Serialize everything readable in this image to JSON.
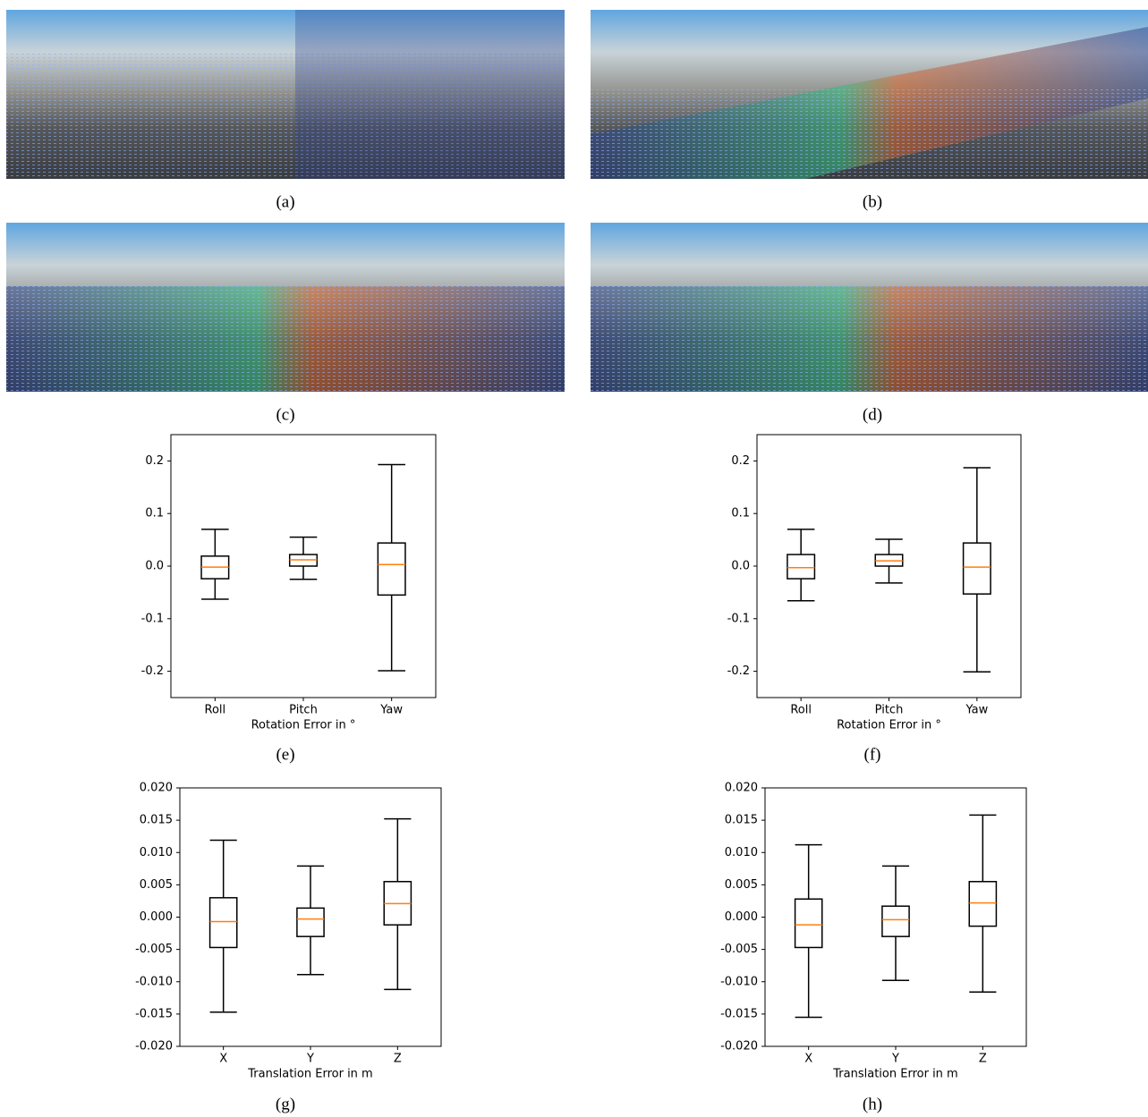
{
  "captions": [
    "(a)",
    "(b)",
    "(c)",
    "(d)",
    "(e)",
    "(f)",
    "(g)",
    "(h)"
  ],
  "chart_data": [
    {
      "type": "box",
      "xlabel": "Rotation Error in °",
      "categories": [
        "Roll",
        "Pitch",
        "Yaw"
      ],
      "whisker_low": [
        -0.063,
        -0.025,
        -0.199
      ],
      "q1": [
        -0.024,
        0.0,
        -0.055
      ],
      "median": [
        -0.002,
        0.012,
        0.003
      ],
      "q3": [
        0.019,
        0.022,
        0.044
      ],
      "whisker_high": [
        0.07,
        0.055,
        0.193
      ],
      "ylim": [
        -0.25,
        0.25
      ],
      "yticks": [
        -0.2,
        -0.1,
        {
          "value": 0,
          "label": "0.0"
        },
        0.1,
        0.2
      ],
      "box_color": "#000000",
      "median_color": "#ff7f0e"
    },
    {
      "type": "box",
      "xlabel": "Rotation Error in °",
      "categories": [
        "Roll",
        "Pitch",
        "Yaw"
      ],
      "whisker_low": [
        -0.066,
        -0.032,
        -0.201
      ],
      "q1": [
        -0.024,
        0.0,
        -0.053
      ],
      "median": [
        -0.003,
        0.01,
        -0.002
      ],
      "q3": [
        0.022,
        0.022,
        0.044
      ],
      "whisker_high": [
        0.07,
        0.051,
        0.187
      ],
      "ylim": [
        -0.25,
        0.25
      ],
      "yticks": [
        -0.2,
        -0.1,
        {
          "value": 0,
          "label": "0.0"
        },
        0.1,
        0.2
      ],
      "box_color": "#000000",
      "median_color": "#ff7f0e"
    },
    {
      "type": "box",
      "xlabel": "Translation Error in m",
      "categories": [
        "X",
        "Y",
        "Z"
      ],
      "whisker_low": [
        -0.0147,
        -0.0089,
        -0.0112
      ],
      "q1": [
        -0.0047,
        -0.003,
        -0.0012
      ],
      "median": [
        -0.0007,
        -0.0003,
        0.0021
      ],
      "q3": [
        0.003,
        0.0014,
        0.0055
      ],
      "whisker_high": [
        0.0119,
        0.0079,
        0.0152
      ],
      "ylim": [
        -0.02,
        0.02
      ],
      "yticks": [
        {
          "value": -0.02,
          "label": "-0.020"
        },
        {
          "value": -0.015,
          "label": "-0.015"
        },
        {
          "value": -0.01,
          "label": "-0.010"
        },
        -0.005,
        {
          "value": 0,
          "label": "0.000"
        },
        0.005,
        {
          "value": 0.01,
          "label": "0.010"
        },
        {
          "value": 0.015,
          "label": "0.015"
        },
        {
          "value": 0.02,
          "label": "0.020"
        }
      ],
      "box_color": "#000000",
      "median_color": "#ff7f0e"
    },
    {
      "type": "box",
      "xlabel": "Translation Error in m",
      "categories": [
        "X",
        "Y",
        "Z"
      ],
      "whisker_low": [
        -0.0155,
        -0.0098,
        -0.0116
      ],
      "q1": [
        -0.0047,
        -0.003,
        -0.0014
      ],
      "median": [
        -0.0012,
        -0.0004,
        0.0022
      ],
      "q3": [
        0.0028,
        0.0017,
        0.0055
      ],
      "whisker_high": [
        0.0112,
        0.0079,
        0.0158
      ],
      "ylim": [
        -0.02,
        0.02
      ],
      "yticks": [
        {
          "value": -0.02,
          "label": "-0.020"
        },
        {
          "value": -0.015,
          "label": "-0.015"
        },
        {
          "value": -0.01,
          "label": "-0.010"
        },
        -0.005,
        {
          "value": 0,
          "label": "0.000"
        },
        0.005,
        {
          "value": 0.01,
          "label": "0.010"
        },
        {
          "value": 0.015,
          "label": "0.015"
        },
        {
          "value": 0.02,
          "label": "0.020"
        }
      ],
      "box_color": "#000000",
      "median_color": "#ff7f0e"
    }
  ]
}
